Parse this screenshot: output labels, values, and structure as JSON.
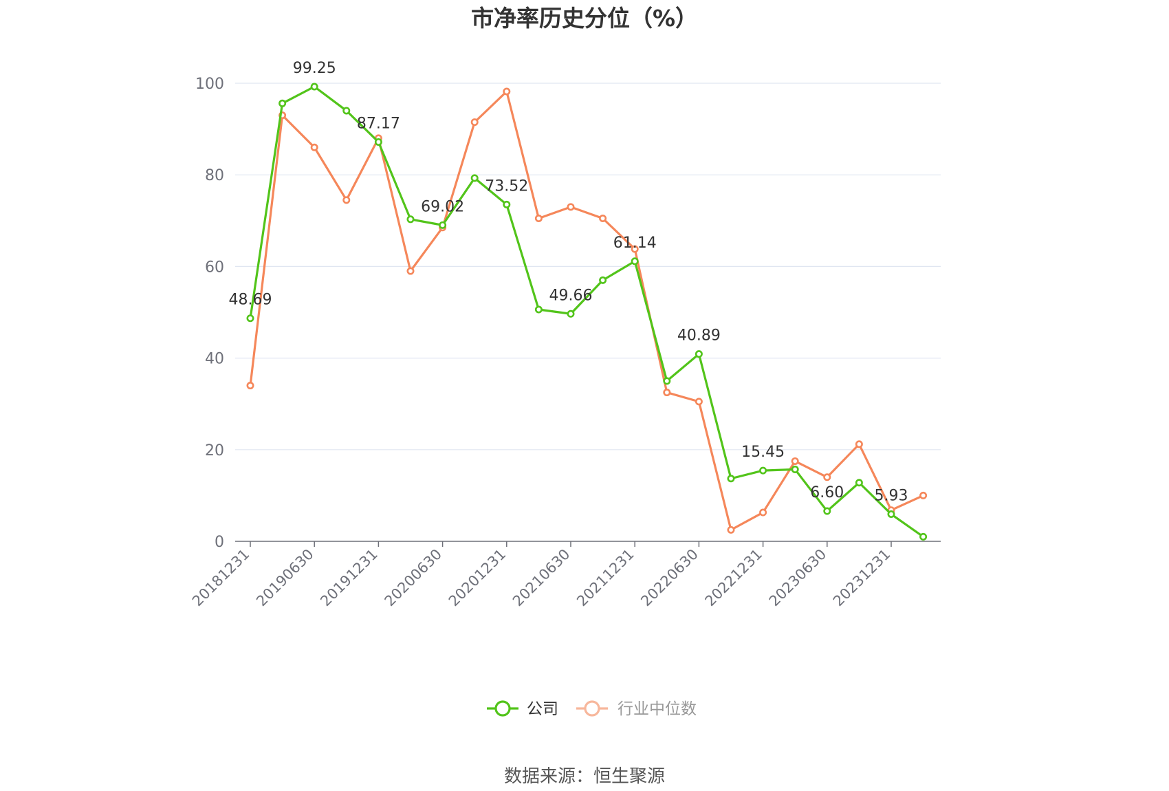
{
  "title": "市净率历史分位（%）",
  "source": "数据来源：恒生聚源",
  "colors": {
    "company": "#52c41a",
    "industry": "#f5875a",
    "grid": "#e0e6f1",
    "axis": "#6e7079"
  },
  "legend": [
    {
      "name": "公司",
      "color": "#52c41a",
      "active": true
    },
    {
      "name": "行业中位数",
      "color": "#f7b79c",
      "active": false
    }
  ],
  "chart_data": {
    "type": "line",
    "title": "市净率历史分位（%）",
    "ylim": [
      0,
      100
    ],
    "yticks": [
      0,
      20,
      40,
      60,
      80,
      100
    ],
    "grid": true,
    "legend_position": "bottom",
    "x": [
      "20181231",
      "20190331",
      "20190630",
      "20190930",
      "20191231",
      "20200331",
      "20200630",
      "20200930",
      "20201231",
      "20210331",
      "20210630",
      "20210930",
      "20211231",
      "20220331",
      "20220630",
      "20220930",
      "20221231",
      "20230331",
      "20230630",
      "20230930",
      "20231231",
      "20240331"
    ],
    "xtick_labels": [
      "20181231",
      "20190630",
      "20191231",
      "20200630",
      "20201231",
      "20210630",
      "20211231",
      "20220630",
      "20221231",
      "20230630",
      "20231231"
    ],
    "series": [
      {
        "name": "公司",
        "values": [
          48.69,
          95.6,
          99.25,
          94.0,
          87.17,
          70.3,
          69.02,
          79.3,
          73.52,
          50.6,
          49.66,
          57.0,
          61.14,
          35.0,
          40.89,
          13.7,
          15.45,
          15.7,
          6.6,
          12.8,
          5.93,
          1.0
        ],
        "labels": {
          "0": "48.69",
          "2": "99.25",
          "4": "87.17",
          "6": "69.02",
          "8": "73.52",
          "10": "49.66",
          "12": "61.14",
          "14": "40.89",
          "16": "15.45",
          "18": "6.60",
          "20": "5.93"
        }
      },
      {
        "name": "行业中位数",
        "values": [
          34.0,
          93.0,
          86.0,
          74.5,
          88.0,
          59.0,
          68.5,
          91.5,
          98.2,
          70.5,
          73.0,
          70.5,
          63.8,
          32.5,
          30.5,
          2.5,
          6.3,
          17.5,
          14.0,
          21.2,
          6.8,
          10.0
        ]
      }
    ]
  }
}
